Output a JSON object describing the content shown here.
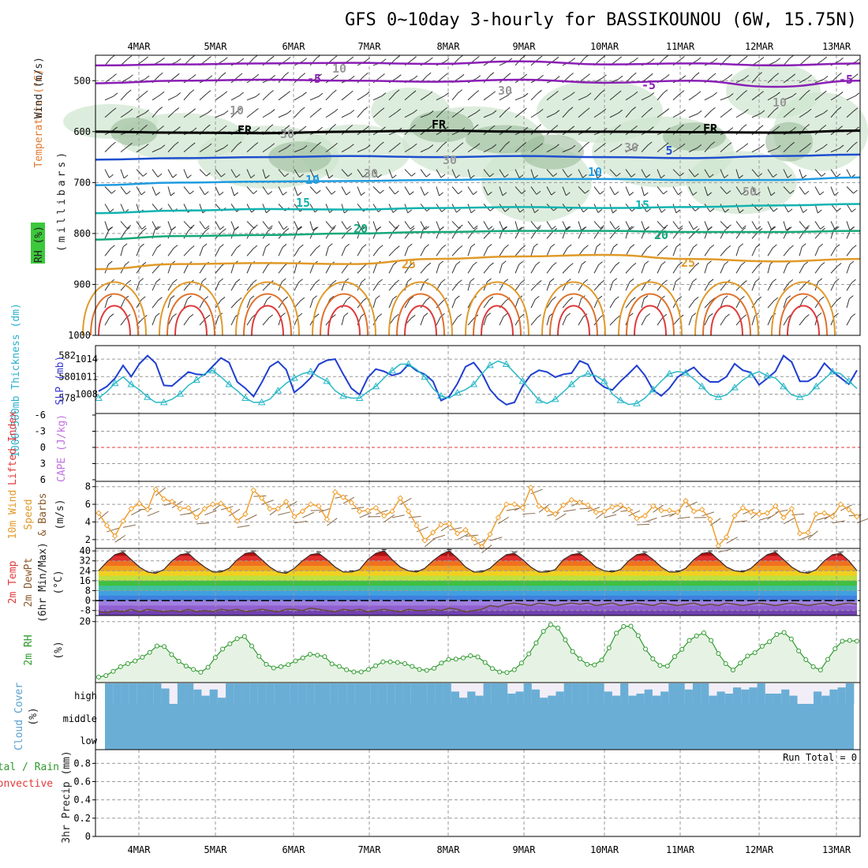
{
  "title": "GFS 0~10day 3-hourly for BASSIKOUNOU (6W, 15.75N)",
  "date_labels": [
    "4MAR",
    "5MAR",
    "6MAR",
    "7MAR",
    "8MAR",
    "9MAR",
    "10MAR",
    "11MAR",
    "12MAR",
    "13MAR"
  ],
  "run_total_label": "Run Total = 0",
  "colors": {
    "temp_cold": "#8a1fb5",
    "freezing": "#000000",
    "temp_blue": "#1e4fd0",
    "temp_light_blue": "#1f9be0",
    "temp_cyan": "#12b3b0",
    "temp_teal": "#16a87a",
    "temp_orange": "#e09a2a",
    "temp_red": "#e03a3a",
    "rh_fill": "#cfe6cf",
    "slp_line": "#1f3fd0",
    "thickness_line": "#2ab8c8",
    "wind_line": "#f0a030",
    "rh2m_line": "#2e9a2e",
    "cloud_fill": "#6aaed6",
    "cloud_clear": "#f2eef8"
  },
  "chart_data": [
    {
      "type": "heatmap",
      "panel": "upper-air",
      "ylabel_parts": [
        "Wind (m/s)",
        "Temperature (°C)",
        "RH (%)",
        "(millibars)"
      ],
      "y_ticks": [
        500,
        600,
        700,
        800,
        900,
        1000
      ],
      "ylim": [
        1000,
        450
      ],
      "contour_labels": [
        "-5",
        "-5",
        "FR",
        "FR",
        "FR",
        "-5",
        "5",
        "10",
        "10",
        "15",
        "15",
        "20",
        "20",
        "25",
        "25",
        "10",
        "10",
        "30",
        "30",
        "30",
        "30",
        "30",
        "10",
        "50"
      ],
      "isotherms": [
        {
          "name": "-5",
          "color": "#8a1fb5",
          "p": [
            505,
            500,
            498,
            500,
            502,
            498,
            504,
            500,
            512,
            500
          ]
        },
        {
          "name": "-5",
          "color": "#8a1fb5",
          "p": [
            470,
            468,
            466,
            465,
            467,
            462,
            468,
            466,
            470,
            466
          ]
        },
        {
          "name": "FR",
          "color": "#000000",
          "p": [
            600,
            602,
            603,
            600,
            598,
            600,
            600,
            601,
            602,
            598
          ]
        },
        {
          "name": "5",
          "color": "#1e4fd0",
          "p": [
            655,
            652,
            650,
            648,
            650,
            648,
            650,
            652,
            648,
            645
          ]
        },
        {
          "name": "10",
          "color": "#1f9be0",
          "p": [
            705,
            700,
            698,
            697,
            695,
            693,
            693,
            695,
            695,
            690
          ]
        },
        {
          "name": "15",
          "color": "#12b3b0",
          "p": [
            760,
            755,
            752,
            753,
            750,
            748,
            750,
            748,
            745,
            742
          ]
        },
        {
          "name": "20",
          "color": "#16a87a",
          "p": [
            812,
            805,
            803,
            800,
            797,
            795,
            795,
            797,
            797,
            795
          ]
        },
        {
          "name": "25",
          "color": "#e09a2a",
          "p": [
            870,
            860,
            858,
            860,
            850,
            845,
            842,
            850,
            855,
            850
          ]
        }
      ]
    },
    {
      "type": "line",
      "panel": "thickness-slp",
      "ylabel_left": "1000~500mb Thickness (dm)",
      "ylabel_right": "SLP (mb)",
      "y_ticks_left": [
        578,
        580,
        582
      ],
      "y_ticks_right": [
        1008,
        1011,
        1014
      ],
      "series": [
        {
          "name": "SLP (mb)",
          "values": [
            1008.5,
            1009.3,
            1010.7,
            1012.9,
            1011.0,
            1013.2,
            1014.6,
            1013.3,
            1009.5,
            1009.4,
            1010.6,
            1011.8,
            1011.4,
            1011.3,
            1012.8,
            1014.2,
            1013.4,
            1010.1,
            1009.0,
            1007.6,
            1010.0,
            1012.7,
            1013.6,
            1012.2,
            1008.3,
            1009.4,
            1010.8,
            1013.1,
            1013.8,
            1014.0,
            1011.4,
            1009.0,
            1007.9,
            1010.8,
            1012.3,
            1011.9,
            1011.2,
            1011.6,
            1013.1,
            1012.0,
            1011.4,
            1010.2,
            1006.9,
            1007.6,
            1009.8,
            1012.7,
            1013.4,
            1011.6,
            1008.8,
            1007.2,
            1006.2,
            1006.6,
            1009.4,
            1011.3,
            1012.1,
            1011.8,
            1010.9,
            1011.4,
            1011.6,
            1013.7,
            1013.1,
            1010.3,
            1009.2,
            1008.7,
            1010.2,
            1011.5,
            1012.9,
            1011.2,
            1008.7,
            1007.7,
            1009.0,
            1010.9,
            1011.8,
            1012.6,
            1011.1,
            1010.1,
            1010.1,
            1011.0,
            1013.2,
            1012.1,
            1011.7,
            1009.6,
            1010.7,
            1011.9,
            1014.6,
            1013.5,
            1010.2,
            1010.2,
            1011.1,
            1013.3,
            1011.9,
            1010.8,
            1009.7,
            1012.1
          ]
        },
        {
          "name": "1000~500mb Thickness (dm)",
          "values": [
            578.0,
            578.6,
            579.4,
            580.0,
            579.3,
            578.8,
            578.1,
            577.6,
            577.6,
            577.9,
            578.4,
            579.2,
            579.7,
            580.3,
            580.6,
            580.0,
            579.3,
            578.7,
            578.0,
            577.6,
            577.6,
            577.9,
            578.7,
            579.4,
            579.9,
            580.3,
            580.5,
            580.0,
            579.6,
            578.7,
            578.2,
            578.0,
            578.0,
            578.6,
            579.1,
            579.9,
            580.6,
            581.2,
            581.2,
            580.7,
            580.0,
            578.9,
            578.2,
            578.0,
            578.5,
            578.8,
            579.3,
            580.3,
            581.1,
            581.5,
            581.2,
            580.4,
            579.6,
            578.7,
            577.8,
            577.5,
            577.9,
            578.6,
            579.3,
            580.0,
            580.3,
            580.1,
            579.6,
            578.4,
            577.8,
            577.4,
            577.5,
            578.0,
            578.8,
            579.6,
            580.3,
            580.5,
            580.4,
            579.8,
            579.1,
            578.3,
            578.1,
            578.3,
            579.0,
            579.7,
            580.2,
            580.5,
            580.1,
            579.9,
            579.1,
            578.3,
            578.1,
            578.3,
            579.1,
            579.8,
            580.5,
            580.3,
            579.6,
            578.9
          ]
        }
      ]
    },
    {
      "type": "line",
      "panel": "cape-li",
      "ylabel_left": "Lifted Index",
      "ylabel_right": "CAPE (J/kg)",
      "y_ticks": [
        "-6",
        "-3",
        "0",
        "3",
        "6"
      ],
      "series": []
    },
    {
      "type": "line",
      "panel": "wind10m",
      "ylabel": [
        "10m Wind",
        "Speed",
        "& Barbs",
        "(m/s)"
      ],
      "y_ticks": [
        2,
        4,
        6,
        8
      ],
      "ylim": [
        1,
        8.6
      ],
      "series": [
        {
          "name": "10m Wind Speed",
          "values": [
            5.0,
            3.6,
            2.4,
            4.1,
            5.5,
            6.1,
            5.4,
            7.7,
            6.6,
            6.3,
            5.5,
            5.6,
            4.5,
            5.5,
            6.0,
            6.1,
            5.4,
            4.1,
            4.9,
            7.6,
            6.7,
            5.5,
            5.5,
            6.3,
            4.6,
            5.2,
            6.0,
            5.8,
            4.3,
            7.4,
            6.8,
            6.2,
            5.2,
            5.3,
            5.6,
            4.7,
            5.2,
            6.7,
            5.2,
            3.6,
            1.9,
            2.8,
            3.7,
            3.8,
            2.7,
            3.1,
            2.1,
            1.2,
            2.6,
            4.5,
            6.0,
            6.0,
            5.6,
            7.9,
            5.8,
            5.4,
            4.9,
            5.9,
            6.5,
            6.2,
            5.9,
            5.1,
            5.2,
            5.7,
            5.9,
            5.4,
            4.4,
            4.7,
            5.8,
            5.3,
            5.3,
            5.1,
            6.4,
            5.2,
            5.4,
            4.3,
            1.3,
            2.3,
            4.7,
            5.6,
            5.1,
            4.9,
            5.0,
            5.8,
            4.5,
            5.5,
            2.7,
            2.8,
            4.9,
            5.0,
            4.6,
            6.0,
            5.4,
            4.6
          ]
        }
      ]
    },
    {
      "type": "area",
      "panel": "temp2m",
      "ylabel": [
        "2m Temp",
        "2m DewPt",
        "(6hr Min/Max)",
        "(°C)"
      ],
      "y_ticks": [
        -8,
        0,
        8,
        16,
        24,
        32,
        40
      ],
      "ylim": [
        -12,
        42
      ],
      "series": [
        {
          "name": "2m Temp",
          "values": [
            24,
            31,
            37,
            39,
            33,
            27,
            23,
            22,
            25,
            32,
            37,
            38,
            32,
            27,
            23,
            23,
            26,
            33,
            38,
            39,
            33,
            27,
            23,
            22,
            26,
            32,
            37,
            38,
            33,
            27,
            23,
            23,
            25,
            33,
            38,
            40,
            33,
            27,
            24,
            23,
            26,
            32,
            37,
            40,
            34,
            27,
            23,
            23,
            26,
            32,
            37,
            38,
            33,
            27,
            23,
            23,
            25,
            33,
            37,
            38,
            33,
            27,
            24,
            23,
            25,
            32,
            37,
            38,
            33,
            27,
            23,
            23,
            26,
            33,
            38,
            39,
            33,
            27,
            24,
            23,
            26,
            32,
            37,
            39,
            33,
            27,
            23,
            22,
            25,
            32,
            37,
            38,
            32,
            24
          ]
        },
        {
          "name": "2m DewPt",
          "values": [
            -9,
            -10,
            -8,
            -9,
            -7,
            -9,
            -7,
            -8,
            -9,
            -8,
            -9,
            -7,
            -9,
            -8,
            -9,
            -7,
            -8,
            -7,
            -9,
            -8,
            -7,
            -8,
            -9,
            -7,
            -7,
            -8,
            -6,
            -7,
            -8,
            -9,
            -7,
            -8,
            -7,
            -9,
            -8,
            -7,
            -8,
            -9,
            -7,
            -8,
            -8,
            -7,
            -8,
            -6,
            -7,
            -9,
            -8,
            -7,
            -4,
            -5,
            -3,
            -2,
            -3,
            -4,
            -2,
            -3,
            -4,
            -3,
            -2,
            -3,
            -2,
            -4,
            -3,
            -2,
            -4,
            -3,
            -2,
            -3,
            -4,
            -2,
            -3,
            -4,
            -3,
            -2,
            -4,
            -3,
            -4,
            -2,
            -3,
            -4,
            -3,
            -2,
            -3,
            -4,
            -3,
            -2,
            -3,
            -4,
            -3,
            -2,
            -4,
            -3,
            -2,
            -3
          ]
        }
      ]
    },
    {
      "type": "area",
      "panel": "rh2m",
      "ylabel": [
        "2m RH",
        "(%)"
      ],
      "y_ticks": [
        20
      ],
      "ylim": [
        0,
        22
      ],
      "series": [
        {
          "name": "2m RH",
          "values": [
            1.8,
            2.3,
            3.7,
            5.2,
            6.2,
            7.1,
            8.3,
            9.9,
            12.0,
            11.8,
            9.2,
            7.0,
            5.4,
            4.3,
            3.4,
            5.0,
            8.2,
            11.0,
            12.7,
            14.4,
            15.1,
            12.0,
            8.6,
            6.0,
            4.8,
            5.2,
            5.9,
            7.1,
            8.1,
            9.3,
            9.0,
            8.5,
            6.1,
            5.3,
            4.2,
            3.5,
            3.5,
            4.3,
            5.5,
            6.8,
            6.8,
            6.6,
            6.2,
            5.3,
            4.3,
            4.0,
            4.7,
            6.4,
            7.6,
            7.7,
            8.1,
            8.8,
            8.4,
            6.6,
            4.6,
            3.5,
            3.3,
            4.2,
            6.4,
            9.4,
            13.0,
            16.8,
            19.0,
            17.9,
            14.0,
            10.2,
            7.8,
            6.0,
            5.8,
            7.4,
            11.4,
            16.2,
            18.4,
            18.5,
            15.4,
            11.0,
            7.8,
            5.6,
            5.4,
            8.5,
            10.9,
            13.8,
            15.3,
            16.3,
            13.8,
            9.5,
            6.2,
            4.1,
            6.4,
            8.7,
            9.8,
            11.9,
            13.4,
            15.8,
            16.4,
            14.3,
            10.4,
            7.5,
            5.2,
            4.1,
            7.6,
            11.1,
            13.6,
            13.8,
            13.6
          ]
        }
      ]
    },
    {
      "type": "bar",
      "panel": "cloud-cover",
      "ylabel": [
        "Cloud Cover",
        "(%)"
      ],
      "y_ticks": [
        "high",
        "middle",
        "low"
      ],
      "series": [
        {
          "name": "high cloud deficit (%)",
          "values": [
            0,
            0,
            0,
            0,
            0,
            0,
            0,
            25,
            100,
            0,
            0,
            30,
            60,
            30,
            70,
            0,
            0,
            0,
            0,
            0,
            0,
            0,
            0,
            0,
            0,
            0,
            0,
            0,
            0,
            0,
            0,
            0,
            0,
            0,
            0,
            0,
            0,
            0,
            0,
            0,
            0,
            0,
            0,
            40,
            70,
            40,
            60,
            0,
            0,
            0,
            50,
            40,
            0,
            30,
            70,
            60,
            40,
            0,
            0,
            0,
            0,
            0,
            40,
            60,
            0,
            60,
            50,
            30,
            60,
            40,
            0,
            0,
            30,
            0,
            0,
            60,
            40,
            50,
            20,
            30,
            20,
            0,
            50,
            50,
            30,
            60,
            100,
            100,
            40,
            60,
            30,
            20,
            0
          ]
        }
      ]
    },
    {
      "type": "bar",
      "panel": "precip",
      "ylabel_left": [
        "Total / Rain",
        "Convective"
      ],
      "ylabel": "3hr Precip (mm)",
      "y_ticks": [
        0,
        0.2,
        0.4,
        0.6,
        0.8
      ],
      "ylim": [
        0,
        0.95
      ],
      "series": []
    }
  ]
}
